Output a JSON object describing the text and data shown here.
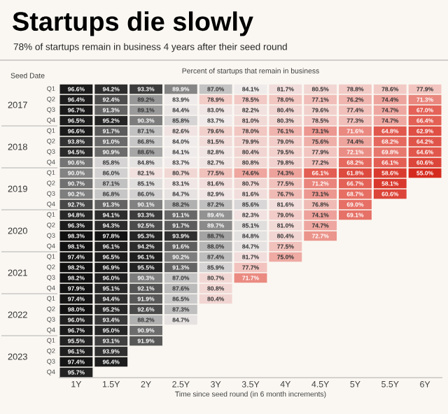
{
  "chart_data": {
    "type": "heatmap",
    "title": "Startups die slowly",
    "subtitle": "78% of startups remain in business 4 years after their seed round",
    "xlabel": "Time since seed round (in 6 month increments)",
    "ylabel": "Seed Date",
    "annotations": [
      "Percent of startups that remain in business"
    ],
    "categories": [
      "1Y",
      "1.5Y",
      "2Y",
      "2.5Y",
      "3Y",
      "3.5Y",
      "4Y",
      "4.5Y",
      "5Y",
      "5.5Y",
      "6Y"
    ],
    "y_categories": [
      "Q1",
      "Q2",
      "Q3",
      "Q4",
      "Q1",
      "Q2",
      "Q3",
      "Q4",
      "Q1",
      "Q2",
      "Q3",
      "Q4",
      "Q1",
      "Q2",
      "Q3",
      "Q4",
      "Q1",
      "Q2",
      "Q3",
      "Q4",
      "Q1",
      "Q2",
      "Q3",
      "Q4",
      "Q1",
      "Q2",
      "Q3",
      "Q4"
    ],
    "y2_categories": [
      null,
      "2017",
      null,
      null,
      null,
      "2018",
      null,
      null,
      null,
      "2019",
      null,
      null,
      null,
      "2020",
      null,
      null,
      null,
      "2021",
      null,
      null,
      null,
      "2022",
      null,
      null,
      null,
      "2023",
      null,
      null
    ],
    "cells": [
      [
        96.6,
        94.2,
        93.3,
        89.9,
        87.0,
        84.1,
        81.7,
        80.5,
        78.8,
        78.6,
        77.9
      ],
      [
        96.4,
        92.4,
        89.2,
        83.9,
        78.9,
        78.5,
        78.0,
        77.1,
        76.2,
        74.4,
        71.3
      ],
      [
        96.7,
        91.3,
        89.1,
        84.4,
        83.0,
        82.2,
        80.4,
        79.6,
        77.4,
        74.7,
        67.0
      ],
      [
        96.5,
        95.2,
        90.3,
        85.8,
        83.7,
        81.0,
        80.3,
        78.5,
        77.3,
        74.7,
        66.4
      ],
      [
        96.6,
        91.7,
        87.1,
        82.6,
        79.6,
        78.0,
        76.1,
        73.1,
        71.6,
        64.8,
        62.9
      ],
      [
        93.8,
        91.0,
        86.8,
        84.0,
        81.5,
        79.9,
        79.0,
        75.6,
        74.4,
        68.2,
        64.2
      ],
      [
        94.5,
        90.9,
        88.6,
        84.1,
        82.8,
        80.4,
        79.5,
        77.9,
        72.1,
        69.8,
        64.6
      ],
      [
        90.6,
        85.8,
        84.8,
        83.7,
        82.7,
        80.8,
        79.8,
        77.2,
        68.2,
        66.1,
        60.6
      ],
      [
        90.0,
        86.0,
        82.1,
        80.7,
        77.5,
        74.6,
        74.3,
        66.1,
        61.8,
        58.6,
        55.0
      ],
      [
        90.7,
        87.1,
        85.1,
        83.1,
        81.6,
        80.7,
        77.5,
        71.2,
        66.7,
        58.1,
        null
      ],
      [
        90.2,
        86.8,
        86.0,
        84.7,
        82.9,
        81.6,
        76.7,
        73.1,
        68.7,
        60.6,
        null
      ],
      [
        92.7,
        91.3,
        90.1,
        88.2,
        87.2,
        85.6,
        81.6,
        76.8,
        69.0,
        null,
        null
      ],
      [
        94.8,
        94.1,
        93.3,
        91.1,
        89.4,
        82.3,
        79.0,
        74.1,
        69.1,
        null,
        null
      ],
      [
        96.3,
        94.3,
        92.5,
        91.7,
        89.7,
        85.1,
        81.0,
        74.7,
        null,
        null,
        null
      ],
      [
        98.3,
        97.8,
        95.3,
        93.9,
        88.7,
        84.8,
        80.4,
        72.7,
        null,
        null,
        null
      ],
      [
        98.1,
        96.1,
        94.2,
        91.6,
        88.0,
        84.7,
        77.5,
        null,
        null,
        null,
        null
      ],
      [
        97.4,
        96.5,
        96.1,
        90.2,
        87.4,
        81.7,
        75.0,
        null,
        null,
        null,
        null
      ],
      [
        98.2,
        96.9,
        95.5,
        91.3,
        85.9,
        77.7,
        null,
        null,
        null,
        null,
        null
      ],
      [
        98.2,
        96.0,
        90.3,
        87.0,
        80.7,
        71.7,
        null,
        null,
        null,
        null,
        null
      ],
      [
        97.9,
        95.1,
        92.1,
        87.6,
        80.8,
        null,
        null,
        null,
        null,
        null,
        null
      ],
      [
        97.4,
        94.4,
        91.9,
        86.5,
        80.4,
        null,
        null,
        null,
        null,
        null,
        null
      ],
      [
        98.0,
        95.2,
        92.6,
        87.3,
        null,
        null,
        null,
        null,
        null,
        null,
        null
      ],
      [
        96.0,
        93.4,
        88.2,
        84.7,
        null,
        null,
        null,
        null,
        null,
        null,
        null
      ],
      [
        96.7,
        95.0,
        90.9,
        null,
        null,
        null,
        null,
        null,
        null,
        null,
        null
      ],
      [
        95.5,
        93.1,
        91.9,
        null,
        null,
        null,
        null,
        null,
        null,
        null,
        null
      ],
      [
        96.1,
        93.9,
        null,
        null,
        null,
        null,
        null,
        null,
        null,
        null,
        null
      ],
      [
        97.4,
        96.4,
        null,
        null,
        null,
        null,
        null,
        null,
        null,
        null,
        null
      ],
      [
        95.7,
        null,
        null,
        null,
        null,
        null,
        null,
        null,
        null,
        null,
        null
      ]
    ],
    "cell_labels": [
      [
        "96.6%",
        "94.2%",
        "93.3%",
        "89.9%",
        "87.0%",
        "84.1%",
        "81.7%",
        "80.5%",
        "78.8%",
        "78.6%",
        "77.9%"
      ],
      [
        "96.4%",
        "92.4%",
        "89.2%",
        "83.9%",
        "78.9%",
        "78.5%",
        "78.0%",
        "77.1%",
        "76.2%",
        "74.4%",
        "71.3%"
      ],
      [
        "96.7%",
        "91.3%",
        "89.1%",
        "84.4%",
        "83.0%",
        "82.2%",
        "80.4%",
        "79.6%",
        "77.4%",
        "74.7%",
        "67.0%"
      ],
      [
        "96.5%",
        "95.2%",
        "90.3%",
        "85.8%",
        "83.7%",
        "81.0%",
        "80.3%",
        "78.5%",
        "77.3%",
        "74.7%",
        "66.4%"
      ],
      [
        "96.6%",
        "91.7%",
        "87.1%",
        "82.6%",
        "79.6%",
        "78.0%",
        "76.1%",
        "73.1%",
        "71.6%",
        "64.8%",
        "62.9%"
      ],
      [
        "93.8%",
        "91.0%",
        "86.8%",
        "84.0%",
        "81.5%",
        "79.9%",
        "79.0%",
        "75.6%",
        "74.4%",
        "68.2%",
        "64.2%"
      ],
      [
        "94.5%",
        "90.9%",
        "88.6%",
        "84.1%",
        "82.8%",
        "80.4%",
        "79.5%",
        "77.9%",
        "72.1%",
        "69.8%",
        "64.6%"
      ],
      [
        "90.6%",
        "85.8%",
        "84.8%",
        "83.7%",
        "82.7%",
        "80.8%",
        "79.8%",
        "77.2%",
        "68.2%",
        "66.1%",
        "60.6%"
      ],
      [
        "90.0%",
        "86.0%",
        "82.1%",
        "80.7%",
        "77.5%",
        "74.6%",
        "74.3%",
        "66.1%",
        "61.8%",
        "58.6%",
        "55.0%"
      ],
      [
        "90.7%",
        "87.1%",
        "85.1%",
        "83.1%",
        "81.6%",
        "80.7%",
        "77.5%",
        "71.2%",
        "66.7%",
        "58.1%",
        null
      ],
      [
        "90.2%",
        "86.8%",
        "86.0%",
        "84.7%",
        "82.9%",
        "81.6%",
        "76.7%",
        "73.1%",
        "68.7%",
        "60.6%",
        null
      ],
      [
        "92.7%",
        "91.3%",
        "90.1%",
        "88.2%",
        "87.2%",
        "85.6%",
        "81.6%",
        "76.8%",
        "69.0%",
        null,
        null
      ],
      [
        "94.8%",
        "94.1%",
        "93.3%",
        "91.1%",
        "89.4%",
        "82.3%",
        "79.0%",
        "74.1%",
        "69.1%",
        null,
        null
      ],
      [
        "96.3%",
        "94.3%",
        "92.5%",
        "91.7%",
        "89.7%",
        "85.1%",
        "81.0%",
        "74.7%",
        null,
        null,
        null
      ],
      [
        "98.3%",
        "97.8%",
        "95.3%",
        "93.9%",
        "88.7%",
        "84.8%",
        "80.4%",
        "72.7%",
        null,
        null,
        null
      ],
      [
        "98.1%",
        "96.1%",
        "94.2%",
        "91.6%",
        "88.0%",
        "84.7%",
        "77.5%",
        null,
        null,
        null,
        null
      ],
      [
        "97.4%",
        "96.5%",
        "96.1%",
        "90.2%",
        "87.4%",
        "81.7%",
        "75.0%",
        null,
        null,
        null,
        null
      ],
      [
        "98.2%",
        "96.9%",
        "95.5%",
        "91.3%",
        "85.9%",
        "77.7%",
        null,
        null,
        null,
        null,
        null
      ],
      [
        "98.2%",
        "96.0%",
        "90.3%",
        "87.0%",
        "80.7%",
        "71.7%",
        null,
        null,
        null,
        null,
        null
      ],
      [
        "97.9%",
        "95.1%",
        "92.1%",
        "87.6%",
        "80.8%",
        null,
        null,
        null,
        null,
        null,
        null
      ],
      [
        "97.4%",
        "94.4%",
        "91.9%",
        "86.5%",
        "80.4%",
        null,
        null,
        null,
        null,
        null,
        null
      ],
      [
        "98.0%",
        "95.2%",
        "92.6%",
        "87.3%",
        null,
        null,
        null,
        null,
        null,
        null,
        null
      ],
      [
        "96.0%",
        "93.4%",
        "88.2%",
        "84.7%",
        null,
        null,
        null,
        null,
        null,
        null,
        null
      ],
      [
        "96.7%",
        "95.0%",
        "90.9%",
        null,
        null,
        null,
        null,
        null,
        null,
        null,
        null
      ],
      [
        "95.5%",
        "93.1%",
        "91.9%",
        null,
        null,
        null,
        null,
        null,
        null,
        null,
        null
      ],
      [
        "96.1%",
        "93.9%",
        null,
        null,
        null,
        null,
        null,
        null,
        null,
        null,
        null
      ],
      [
        "97.4%",
        "96.4%",
        null,
        null,
        null,
        null,
        null,
        null,
        null,
        null,
        null
      ],
      [
        "95.7%",
        null,
        null,
        null,
        null,
        null,
        null,
        null,
        null,
        null,
        null
      ]
    ]
  }
}
